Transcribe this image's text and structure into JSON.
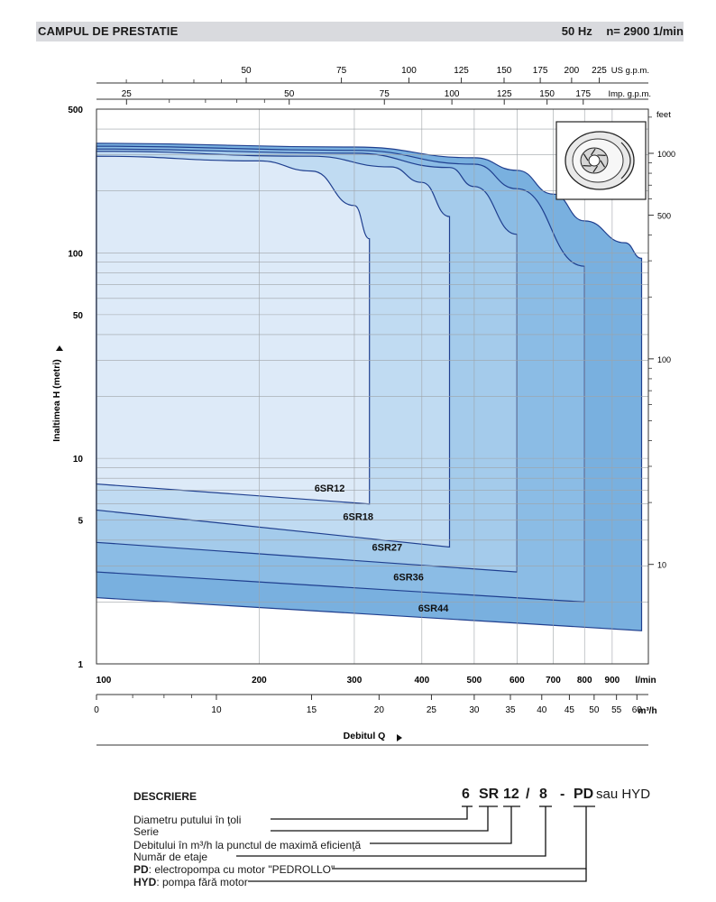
{
  "header": {
    "title": "CAMPUL DE PRESTATIE",
    "frequency": "50 Hz",
    "speed": "n= 2900  1/min"
  },
  "chart_data": {
    "type": "area",
    "ylabel": "Inaltimea H (metri)",
    "xlabel": "Debitul Q",
    "y_scale": "log",
    "ylim": [
      1,
      500
    ],
    "y_ticks": [
      500,
      100,
      50,
      10,
      5,
      1
    ],
    "x_scale": "log",
    "x_range_lmin": [
      100,
      1050
    ],
    "x_axes": {
      "lmin": {
        "unit": "l/min",
        "ticks": [
          100,
          200,
          300,
          400,
          500,
          600,
          700,
          800,
          900
        ]
      },
      "m3h": {
        "unit": "m³/h",
        "ticks": [
          0,
          10,
          15,
          20,
          25,
          30,
          35,
          40,
          45,
          50,
          55,
          60
        ]
      },
      "us_gpm": {
        "unit": "US g.p.m.",
        "ticks": [
          50,
          75,
          100,
          125,
          150,
          175,
          200,
          225
        ]
      },
      "imp_gpm": {
        "unit": "Imp. g.p.m.",
        "ticks": [
          25,
          50,
          75,
          100,
          125,
          150,
          175
        ]
      },
      "feet": {
        "unit": "feet",
        "ticks": [
          1000,
          500,
          100,
          10
        ]
      }
    },
    "grid": true,
    "series": [
      {
        "name": "6SR44",
        "color": "#6ea9dc",
        "top": [
          [
            100,
            341
          ],
          [
            300,
            327
          ],
          [
            500,
            290
          ],
          [
            600,
            252
          ],
          [
            700,
            193
          ],
          [
            800,
            143
          ],
          [
            950,
            112
          ],
          [
            1020,
            94
          ]
        ],
        "bottom": [
          [
            100,
            2.1
          ],
          [
            1020,
            1.45
          ]
        ]
      },
      {
        "name": "6SR36",
        "color": "#8dbde5",
        "top": [
          [
            100,
            330
          ],
          [
            300,
            315
          ],
          [
            500,
            270
          ],
          [
            600,
            205
          ],
          [
            800,
            86
          ]
        ],
        "bottom": [
          [
            100,
            2.8
          ],
          [
            800,
            2.0
          ]
        ]
      },
      {
        "name": "6SR27",
        "color": "#a6ccec",
        "top": [
          [
            100,
            320
          ],
          [
            300,
            305
          ],
          [
            450,
            260
          ],
          [
            500,
            210
          ],
          [
            600,
            123
          ]
        ],
        "bottom": [
          [
            100,
            3.9
          ],
          [
            600,
            2.8
          ]
        ]
      },
      {
        "name": "6SR18",
        "color": "#c2dcf2",
        "top": [
          [
            100,
            312
          ],
          [
            250,
            295
          ],
          [
            350,
            262
          ],
          [
            400,
            220
          ],
          [
            450,
            150
          ]
        ],
        "bottom": [
          [
            100,
            5.6
          ],
          [
            450,
            3.7
          ]
        ]
      },
      {
        "name": "6SR12",
        "color": "#e0ecf8",
        "top": [
          [
            100,
            295
          ],
          [
            200,
            280
          ],
          [
            250,
            250
          ],
          [
            300,
            170
          ],
          [
            320,
            117
          ]
        ],
        "bottom": [
          [
            100,
            7.5
          ],
          [
            320,
            6.0
          ]
        ]
      }
    ]
  },
  "description": {
    "heading": "DESCRIERE",
    "code": {
      "p1": "6",
      "p2": "SR",
      "p3": "12",
      "p4": "/",
      "p5": "8",
      "p6": "-",
      "p7": "PD",
      "p8": "sau HYD"
    },
    "lines": [
      "Diametru putului în ţoli",
      "Serie",
      "Debitului în m³/h la punctul de maximă eficienţă",
      "Număr de etaje"
    ],
    "pd_key": "PD",
    "pd_text": ": electropompa cu motor \"PEDROLLO\"",
    "hyd_key": "HYD",
    "hyd_text": ": pompa fără motor"
  }
}
